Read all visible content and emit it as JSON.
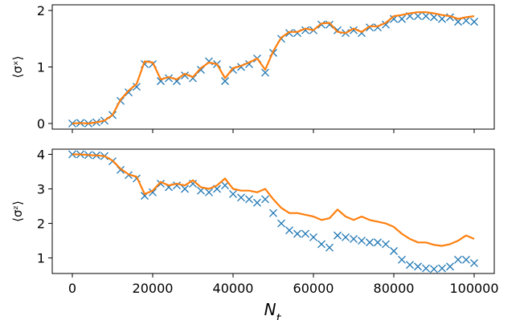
{
  "chart_data": [
    {
      "type": "scatter",
      "ylabel": "⟨σˣ⟩",
      "xlim": [
        -5000,
        105000
      ],
      "ylim": [
        -0.1,
        2.1
      ],
      "xticks": [
        0,
        20000,
        40000,
        60000,
        80000,
        100000
      ],
      "yticks": [
        0,
        1,
        2
      ],
      "series": [
        {
          "marker": "x",
          "color": "#1f77b4",
          "x": [
            0,
            2000,
            4000,
            6000,
            8000,
            10000,
            12000,
            14000,
            16000,
            18000,
            20000,
            22000,
            24000,
            26000,
            28000,
            30000,
            32000,
            34000,
            36000,
            38000,
            40000,
            42000,
            44000,
            46000,
            48000,
            50000,
            52000,
            54000,
            56000,
            58000,
            60000,
            62000,
            64000,
            66000,
            68000,
            70000,
            72000,
            74000,
            76000,
            78000,
            80000,
            82000,
            84000,
            86000,
            88000,
            90000,
            92000,
            94000,
            96000,
            98000,
            100000
          ],
          "y": [
            0.0,
            0.01,
            0.0,
            0.02,
            0.05,
            0.15,
            0.4,
            0.55,
            0.65,
            1.05,
            1.05,
            0.75,
            0.8,
            0.75,
            0.85,
            0.8,
            0.95,
            1.1,
            1.05,
            0.75,
            0.95,
            1.0,
            1.05,
            1.15,
            0.9,
            1.25,
            1.5,
            1.6,
            1.6,
            1.65,
            1.65,
            1.75,
            1.75,
            1.65,
            1.6,
            1.65,
            1.6,
            1.7,
            1.7,
            1.75,
            1.85,
            1.85,
            1.9,
            1.9,
            1.9,
            1.88,
            1.85,
            1.88,
            1.8,
            1.82,
            1.8
          ]
        },
        {
          "marker": "line",
          "color": "#ff7f0e",
          "x": [
            0,
            2000,
            4000,
            6000,
            8000,
            10000,
            12000,
            14000,
            16000,
            18000,
            20000,
            22000,
            24000,
            26000,
            28000,
            30000,
            32000,
            34000,
            36000,
            38000,
            40000,
            42000,
            44000,
            46000,
            48000,
            50000,
            52000,
            54000,
            56000,
            58000,
            60000,
            62000,
            64000,
            66000,
            68000,
            70000,
            72000,
            74000,
            76000,
            78000,
            80000,
            82000,
            84000,
            86000,
            88000,
            90000,
            92000,
            94000,
            96000,
            98000,
            100000
          ],
          "y": [
            0.0,
            0.01,
            0.0,
            0.02,
            0.05,
            0.15,
            0.42,
            0.58,
            0.7,
            1.1,
            1.08,
            0.78,
            0.82,
            0.78,
            0.88,
            0.82,
            0.98,
            1.08,
            1.05,
            0.8,
            0.98,
            1.02,
            1.08,
            1.15,
            0.95,
            1.28,
            1.52,
            1.62,
            1.62,
            1.68,
            1.65,
            1.77,
            1.78,
            1.62,
            1.6,
            1.68,
            1.62,
            1.72,
            1.72,
            1.78,
            1.9,
            1.92,
            1.95,
            1.97,
            1.97,
            1.95,
            1.92,
            1.9,
            1.85,
            1.88,
            1.9
          ]
        }
      ]
    },
    {
      "type": "scatter",
      "ylabel": "⟨σᶻ⟩",
      "xlabel": "N_t",
      "xlim": [
        -5000,
        105000
      ],
      "ylim": [
        0.55,
        4.15
      ],
      "xticks": [
        0,
        20000,
        40000,
        60000,
        80000,
        100000
      ],
      "yticks": [
        1,
        2,
        3,
        4
      ],
      "series": [
        {
          "marker": "x",
          "color": "#1f77b4",
          "x": [
            0,
            2000,
            4000,
            6000,
            8000,
            10000,
            12000,
            14000,
            16000,
            18000,
            20000,
            22000,
            24000,
            26000,
            28000,
            30000,
            32000,
            34000,
            36000,
            38000,
            40000,
            42000,
            44000,
            46000,
            48000,
            50000,
            52000,
            54000,
            56000,
            58000,
            60000,
            62000,
            64000,
            66000,
            68000,
            70000,
            72000,
            74000,
            76000,
            78000,
            80000,
            82000,
            84000,
            86000,
            88000,
            90000,
            92000,
            94000,
            96000,
            98000,
            100000
          ],
          "y": [
            4.0,
            4.0,
            3.98,
            3.97,
            3.95,
            3.8,
            3.55,
            3.4,
            3.3,
            2.8,
            2.9,
            3.15,
            3.05,
            3.1,
            3.0,
            3.15,
            2.95,
            2.9,
            3.0,
            3.1,
            2.85,
            2.75,
            2.7,
            2.6,
            2.7,
            2.3,
            2.0,
            1.8,
            1.7,
            1.7,
            1.6,
            1.4,
            1.3,
            1.65,
            1.6,
            1.55,
            1.5,
            1.45,
            1.45,
            1.4,
            1.2,
            0.95,
            0.8,
            0.75,
            0.7,
            0.68,
            0.7,
            0.75,
            0.95,
            0.95,
            0.85
          ]
        },
        {
          "marker": "line",
          "color": "#ff7f0e",
          "x": [
            0,
            2000,
            4000,
            6000,
            8000,
            10000,
            12000,
            14000,
            16000,
            18000,
            20000,
            22000,
            24000,
            26000,
            28000,
            30000,
            32000,
            34000,
            36000,
            38000,
            40000,
            42000,
            44000,
            46000,
            48000,
            50000,
            52000,
            54000,
            56000,
            58000,
            60000,
            62000,
            64000,
            66000,
            68000,
            70000,
            72000,
            74000,
            76000,
            78000,
            80000,
            82000,
            84000,
            86000,
            88000,
            90000,
            92000,
            94000,
            96000,
            98000,
            100000
          ],
          "y": [
            4.0,
            4.0,
            3.98,
            3.97,
            3.95,
            3.82,
            3.58,
            3.42,
            3.35,
            2.85,
            2.95,
            3.2,
            3.1,
            3.15,
            3.1,
            3.25,
            3.05,
            3.0,
            3.1,
            3.3,
            3.0,
            2.95,
            2.95,
            2.9,
            3.0,
            2.7,
            2.45,
            2.3,
            2.3,
            2.25,
            2.2,
            2.1,
            2.15,
            2.4,
            2.2,
            2.1,
            2.2,
            2.1,
            2.05,
            2.0,
            1.9,
            1.7,
            1.55,
            1.45,
            1.45,
            1.38,
            1.35,
            1.4,
            1.5,
            1.65,
            1.55
          ]
        }
      ]
    }
  ]
}
